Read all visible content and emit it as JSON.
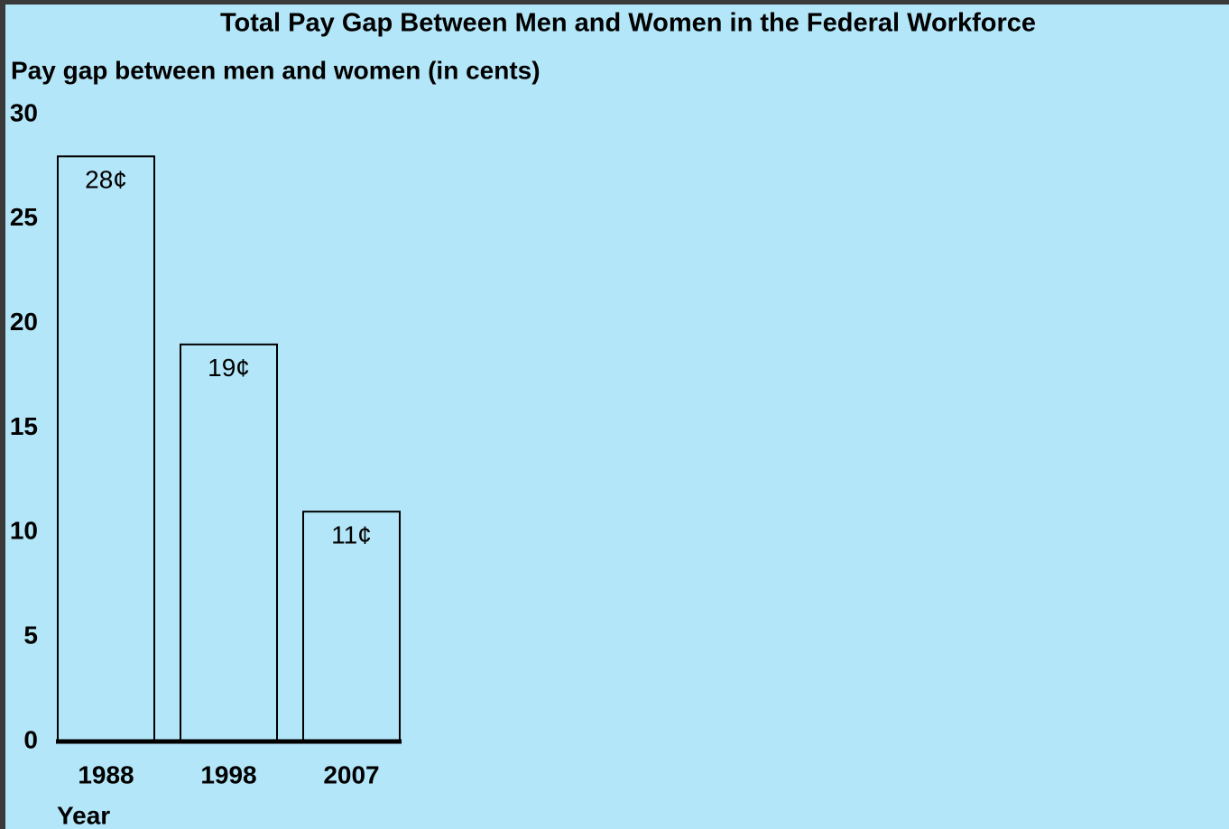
{
  "chart_data": {
    "type": "bar",
    "title": "Total Pay Gap Between Men and Women in the Federal Workforce",
    "y_label": "Pay gap between men and women (in cents)",
    "x_label": "Year",
    "categories": [
      "1988",
      "1998",
      "2007"
    ],
    "values": [
      28,
      19,
      11
    ],
    "value_labels": [
      "28¢",
      "19¢",
      "11¢"
    ],
    "color": "#b3e6f8",
    "ylim": [
      0,
      30
    ],
    "yticks": [
      0,
      5,
      10,
      15,
      20,
      25,
      30
    ],
    "grid": false
  }
}
